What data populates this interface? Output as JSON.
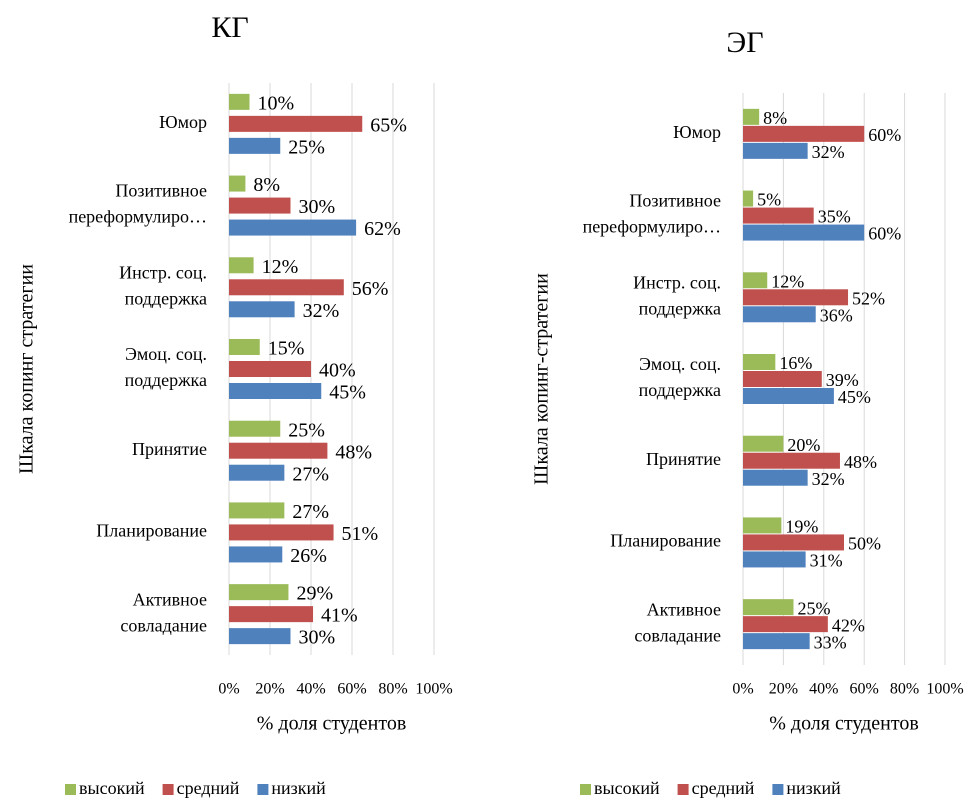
{
  "chart_data": [
    {
      "type": "bar",
      "orientation": "horizontal",
      "title": "КГ",
      "x_label": "% доля студентов",
      "y_label": "Шкала копинг стратегии",
      "categories": [
        [
          "Юмор"
        ],
        [
          "Позитивное",
          "переформулиро…"
        ],
        [
          "Инстр. соц.",
          "поддержка"
        ],
        [
          "Эмоц. соц.",
          "поддержка"
        ],
        [
          "Принятие"
        ],
        [
          "Планирование"
        ],
        [
          "Активное",
          "совладание"
        ]
      ],
      "series": [
        {
          "name": "высокий",
          "color": "#9bbb59",
          "values": [
            10,
            8,
            12,
            15,
            25,
            27,
            29
          ],
          "value_labels": [
            "10%",
            "8%",
            "12%",
            "15%",
            "25%",
            "27%",
            "29%"
          ]
        },
        {
          "name": "средний",
          "color": "#c0504d",
          "values": [
            65,
            30,
            56,
            40,
            48,
            51,
            41
          ],
          "value_labels": [
            "65%",
            "30%",
            "56%",
            "40%",
            "48%",
            "51%",
            "41%"
          ]
        },
        {
          "name": "низкий",
          "color": "#4f81bd",
          "values": [
            25,
            62,
            32,
            45,
            27,
            26,
            30
          ],
          "value_labels": [
            "25%",
            "62%",
            "32%",
            "45%",
            "27%",
            "26%",
            "30%"
          ]
        }
      ],
      "xlim": [
        0,
        100
      ],
      "xticks": [
        {
          "value": 0,
          "label": "0%"
        },
        {
          "value": 20,
          "label": "20%"
        },
        {
          "value": 40,
          "label": "40%"
        },
        {
          "value": 60,
          "label": "60%"
        },
        {
          "value": 80,
          "label": "80%"
        },
        {
          "value": 100,
          "label": "100%"
        }
      ],
      "grid": true,
      "legend": "bottom"
    },
    {
      "type": "bar",
      "orientation": "horizontal",
      "title": "ЭГ",
      "x_label": "% доля студентов",
      "y_label": "Шкала копинг-стратегии",
      "categories": [
        [
          "Юмор"
        ],
        [
          "Позитивное",
          "переформулиро…"
        ],
        [
          "Инстр. соц.",
          "поддержка"
        ],
        [
          "Эмоц. соц.",
          "поддержка"
        ],
        [
          "Принятие"
        ],
        [
          "Планирование"
        ],
        [
          "Активное",
          "совладание"
        ]
      ],
      "series": [
        {
          "name": "высокий",
          "color": "#9bbb59",
          "values": [
            8,
            5,
            12,
            16,
            20,
            19,
            25
          ],
          "value_labels": [
            "8%",
            "5%",
            "12%",
            "16%",
            "20%",
            "19%",
            "25%"
          ]
        },
        {
          "name": "средний",
          "color": "#c0504d",
          "values": [
            60,
            35,
            52,
            39,
            48,
            50,
            42
          ],
          "value_labels": [
            "60%",
            "35%",
            "52%",
            "39%",
            "48%",
            "50%",
            "42%"
          ]
        },
        {
          "name": "низкий",
          "color": "#4f81bd",
          "values": [
            32,
            60,
            36,
            45,
            32,
            31,
            33
          ],
          "value_labels": [
            "32%",
            "60%",
            "36%",
            "45%",
            "32%",
            "31%",
            "33%"
          ]
        }
      ],
      "xlim": [
        0,
        100
      ],
      "xticks": [
        {
          "value": 0,
          "label": "0%"
        },
        {
          "value": 20,
          "label": "20%"
        },
        {
          "value": 40,
          "label": "40%"
        },
        {
          "value": 60,
          "label": "60%"
        },
        {
          "value": 80,
          "label": "80%"
        },
        {
          "value": 100,
          "label": "100%"
        }
      ],
      "grid": true,
      "legend": "bottom"
    }
  ]
}
